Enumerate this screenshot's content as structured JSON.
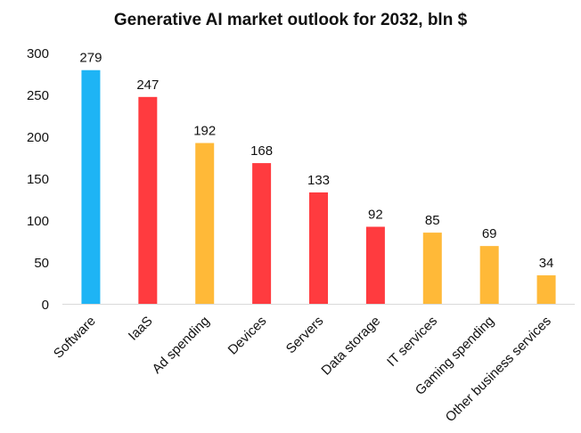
{
  "chart_data": {
    "type": "bar",
    "title": "Generative AI market outlook for 2032, bln $",
    "xlabel": "",
    "ylabel": "",
    "ylim": [
      0,
      300
    ],
    "yticks": [
      0,
      50,
      100,
      150,
      200,
      250,
      300
    ],
    "grid": false,
    "legend": "none",
    "categories": [
      "Software",
      "IaaS",
      "Ad spending",
      "Devices",
      "Servers",
      "Data storage",
      "IT services",
      "Gaming spending",
      "Other business services"
    ],
    "values": [
      279,
      247,
      192,
      168,
      133,
      92,
      85,
      69,
      34
    ],
    "colors": [
      "#1EB4F5",
      "#FF3B3F",
      "#FFB938",
      "#FF3B3F",
      "#FF3B3F",
      "#FF3B3F",
      "#FFB938",
      "#FFB938",
      "#FFB938"
    ]
  }
}
